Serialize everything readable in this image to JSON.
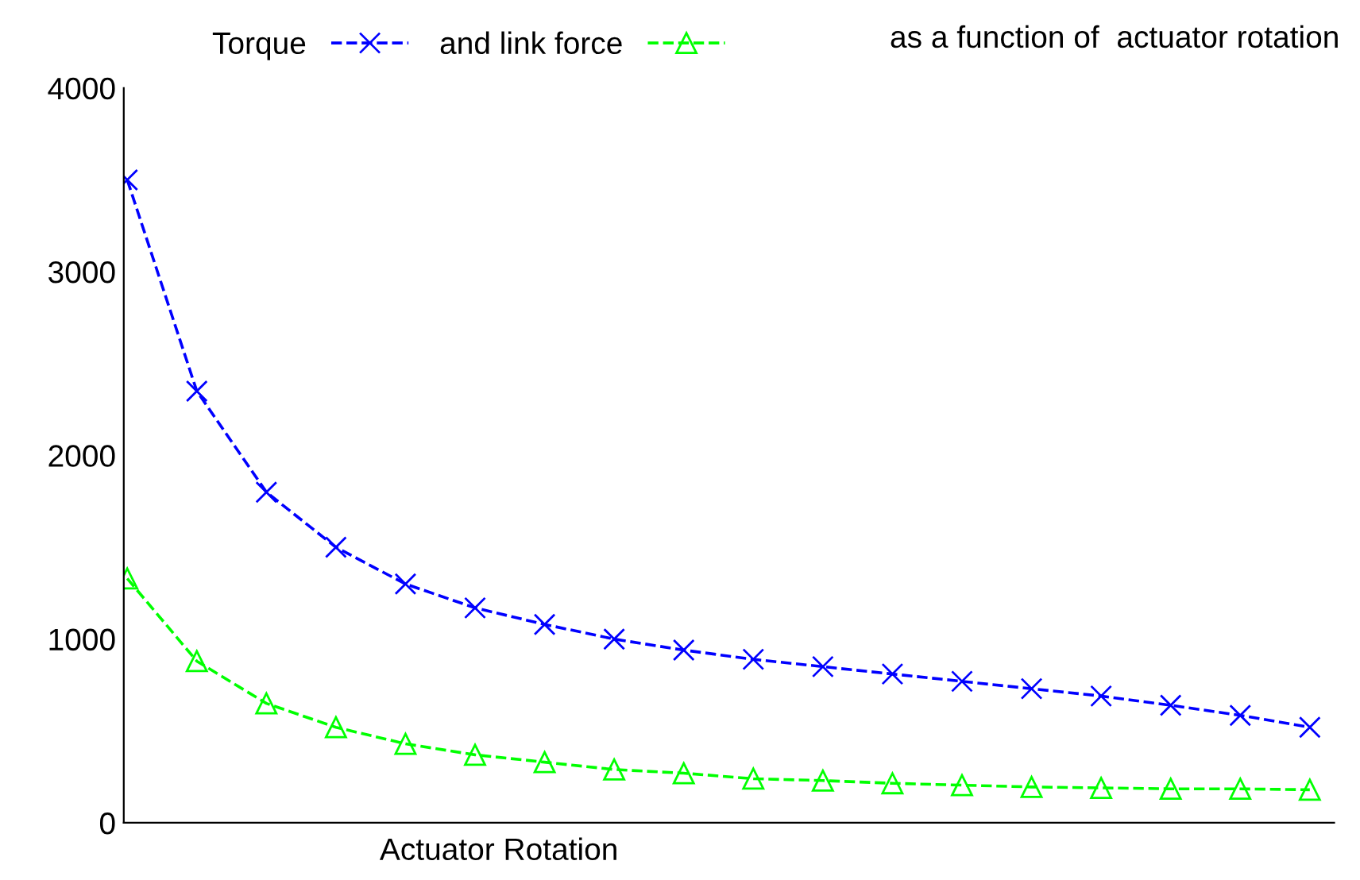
{
  "chart_data": {
    "type": "line",
    "title": "as a function of  actuator rotation",
    "xlabel": "Actuator Rotation",
    "categories": [
      null,
      null,
      null,
      null,
      null,
      null,
      null,
      null,
      null,
      null,
      null,
      null,
      null,
      null,
      null,
      null,
      null,
      null
    ],
    "series": [
      {
        "name": "Torque",
        "color": "#0000ff",
        "marker": "cross",
        "values": [
          3500,
          2350,
          1800,
          1500,
          1300,
          1170,
          1080,
          1000,
          940,
          890,
          850,
          810,
          770,
          730,
          690,
          640,
          585,
          520
        ]
      },
      {
        "name": "and link force",
        "color": "#00ff00",
        "marker": "triangle",
        "values": [
          1330,
          880,
          650,
          520,
          430,
          370,
          330,
          290,
          270,
          240,
          230,
          215,
          205,
          195,
          190,
          185,
          185,
          180
        ]
      }
    ],
    "ylim": [
      0,
      4000
    ],
    "yticks": [
      0,
      1000,
      2000,
      3000,
      4000
    ],
    "line_style": "dashed",
    "grid": false,
    "legend": "top"
  }
}
